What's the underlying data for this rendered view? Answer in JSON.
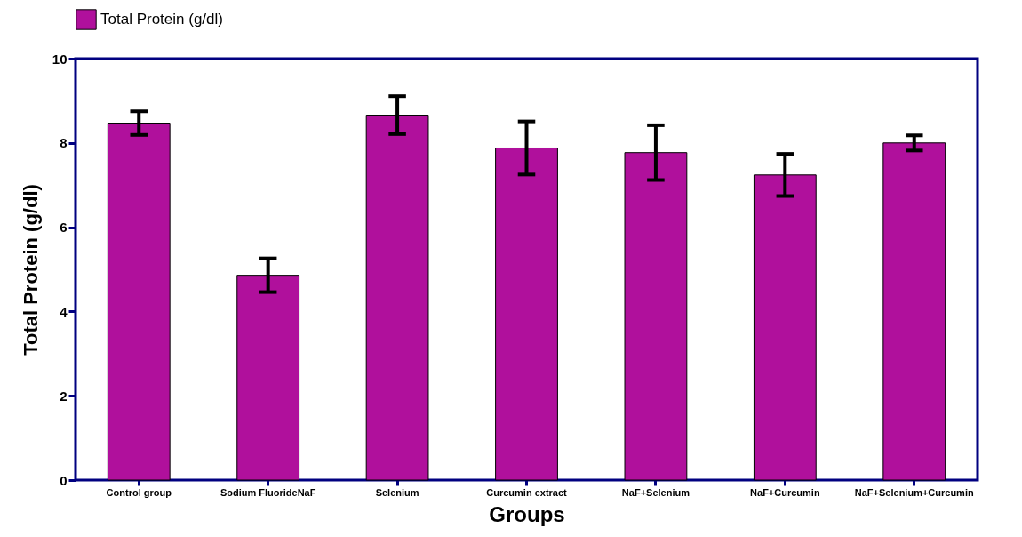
{
  "chart_data": {
    "type": "bar",
    "xlabel": "Groups",
    "ylabel": "Total Protein (g/dl)",
    "categories": [
      "Control group",
      "Sodium FluorideNaF",
      "Selenium",
      "Curcumin extract",
      "NaF+Selenium",
      "NaF+Curcumin",
      "NaF+Selenium+Curcumin"
    ],
    "series": [
      {
        "name": "Total Protein (g/dl)",
        "color": "#b0109c",
        "values": [
          8.47,
          4.86,
          8.66,
          7.88,
          7.77,
          7.24,
          8.0
        ],
        "errors": [
          0.28,
          0.4,
          0.45,
          0.63,
          0.65,
          0.5,
          0.18
        ]
      }
    ],
    "ylim": [
      0,
      10
    ],
    "yticks": [
      0,
      2,
      4,
      6,
      8,
      10
    ],
    "legend": "top left",
    "grid": false
  }
}
